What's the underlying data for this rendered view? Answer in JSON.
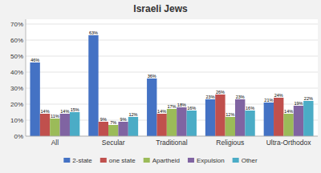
{
  "chart_data": {
    "type": "bar",
    "title": "Israeli Jews",
    "categories": [
      "All",
      "Secular",
      "Traditional",
      "Religious",
      "Ultra-Orthodox"
    ],
    "series": [
      {
        "name": "2-state",
        "color": "#4472c4",
        "values": [
          46,
          63,
          36,
          23,
          21
        ],
        "value_labels": [
          "46%",
          "63%",
          "36%",
          "23%",
          "21%"
        ]
      },
      {
        "name": "one state",
        "color": "#c0504d",
        "values": [
          14,
          9,
          14,
          26,
          24
        ],
        "value_labels": [
          "14%",
          "9%",
          "14%",
          "26%",
          "24%"
        ]
      },
      {
        "name": "Apartheid",
        "color": "#9bbb59",
        "values": [
          11,
          7,
          17,
          12,
          14
        ],
        "value_labels": [
          "11%",
          "7%",
          "17%",
          "12%",
          "14%"
        ]
      },
      {
        "name": "Expulsion",
        "color": "#8064a2",
        "values": [
          14,
          9,
          18,
          23,
          19
        ],
        "value_labels": [
          "14%",
          "9%",
          "18%",
          "23%",
          "19%"
        ]
      },
      {
        "name": "Other",
        "color": "#4bacc6",
        "values": [
          15,
          12,
          16,
          16,
          22
        ],
        "value_labels": [
          "15%",
          "12%",
          "16%",
          "16%",
          "22%"
        ]
      }
    ],
    "ylim": [
      0,
      73
    ],
    "yticks": [
      {
        "value": 0,
        "label": "0%"
      },
      {
        "value": 10,
        "label": "10%"
      },
      {
        "value": 20,
        "label": "20%"
      },
      {
        "value": 30,
        "label": "30%"
      },
      {
        "value": 40,
        "label": "40%"
      },
      {
        "value": 50,
        "label": "50%"
      },
      {
        "value": 60,
        "label": "60%"
      },
      {
        "value": 70,
        "label": "70%"
      }
    ],
    "grid": true,
    "data_labels": true,
    "legend": "bottom"
  }
}
